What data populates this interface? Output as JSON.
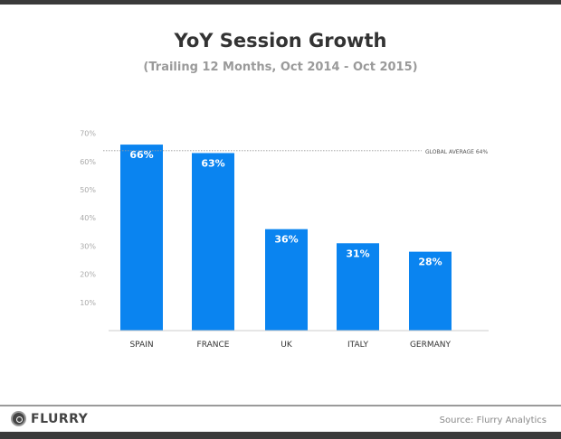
{
  "chart_data": {
    "type": "bar",
    "title": "YoY Session Growth",
    "subtitle": "(Trailing 12 Months, Oct 2014 - Oct 2015)",
    "categories": [
      "SPAIN",
      "FRANCE",
      "UK",
      "ITALY",
      "GERMANY"
    ],
    "values": [
      66,
      63,
      36,
      31,
      28
    ],
    "data_labels": [
      "66%",
      "63%",
      "36%",
      "31%",
      "28%"
    ],
    "yticks": [
      10,
      20,
      30,
      40,
      50,
      60,
      70
    ],
    "ytick_labels": [
      "10%",
      "20%",
      "30%",
      "40%",
      "50%",
      "60%",
      "70%"
    ],
    "ylim": [
      0,
      70
    ],
    "xlabel": "",
    "ylabel": "",
    "grid": false,
    "reference_line": {
      "value": 64,
      "label": "GLOBAL AVERAGE 64%"
    },
    "bar_color": "#0a84f0"
  },
  "footer": {
    "brand": "FLURRY",
    "source": "Source: Flurry Analytics"
  }
}
